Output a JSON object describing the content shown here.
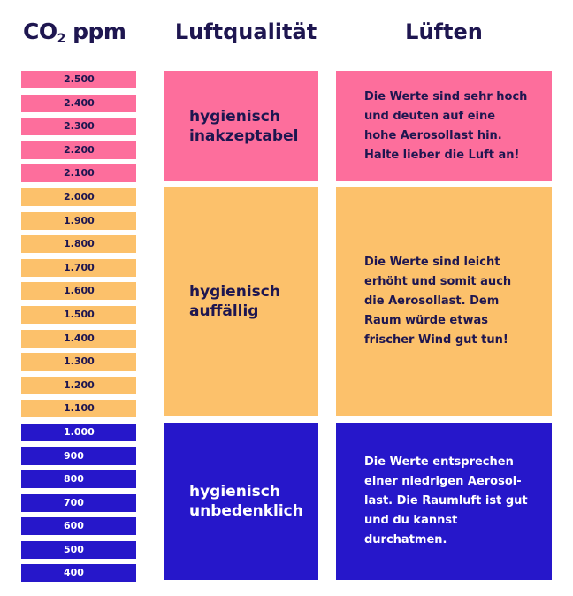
{
  "headers": {
    "co2_main": "CO",
    "co2_sub": "2",
    "co2_unit": " ppm",
    "air_quality": "Luftqualität",
    "ventilate": "Lüften"
  },
  "scale": [
    {
      "label": "2.500",
      "level": "pink"
    },
    {
      "label": "2.400",
      "level": "pink"
    },
    {
      "label": "2.300",
      "level": "pink"
    },
    {
      "label": "2.200",
      "level": "pink"
    },
    {
      "label": "2.100",
      "level": "pink"
    },
    {
      "label": "2.000",
      "level": "orange"
    },
    {
      "label": "1.900",
      "level": "orange"
    },
    {
      "label": "1.800",
      "level": "orange"
    },
    {
      "label": "1.700",
      "level": "orange"
    },
    {
      "label": "1.600",
      "level": "orange"
    },
    {
      "label": "1.500",
      "level": "orange"
    },
    {
      "label": "1.400",
      "level": "orange"
    },
    {
      "label": "1.300",
      "level": "orange"
    },
    {
      "label": "1.200",
      "level": "orange"
    },
    {
      "label": "1.100",
      "level": "orange"
    },
    {
      "label": "1.000",
      "level": "blue"
    },
    {
      "label": "900",
      "level": "blue"
    },
    {
      "label": "800",
      "level": "blue"
    },
    {
      "label": "700",
      "level": "blue"
    },
    {
      "label": "600",
      "level": "blue"
    },
    {
      "label": "500",
      "level": "blue"
    },
    {
      "label": "400",
      "level": "blue"
    }
  ],
  "rows": [
    {
      "quality": "hygienisch\ninakzeptabel",
      "text": "Die Werte sind sehr hoch\nund deuten auf eine\nhohe Aerosollast hin.\nHalte lieber die Luft an!"
    },
    {
      "quality": "hygienisch\nauffällig",
      "text": "Die Werte sind leicht\nerhöht und somit auch\ndie Aerosollast. Dem\nRaum würde etwas\nfrischer Wind gut tun!"
    },
    {
      "quality": "hygienisch\nunbedenklich",
      "text": "Die Werte entsprechen\neiner niedrigen Aerosol-\nlast. Die Raumluft ist gut\nund du kannst\ndurchatmen."
    }
  ],
  "colors": {
    "pink": "#fd6e9c",
    "orange": "#fcc16b",
    "blue": "#2617ca",
    "navy_text": "#1e1650"
  }
}
